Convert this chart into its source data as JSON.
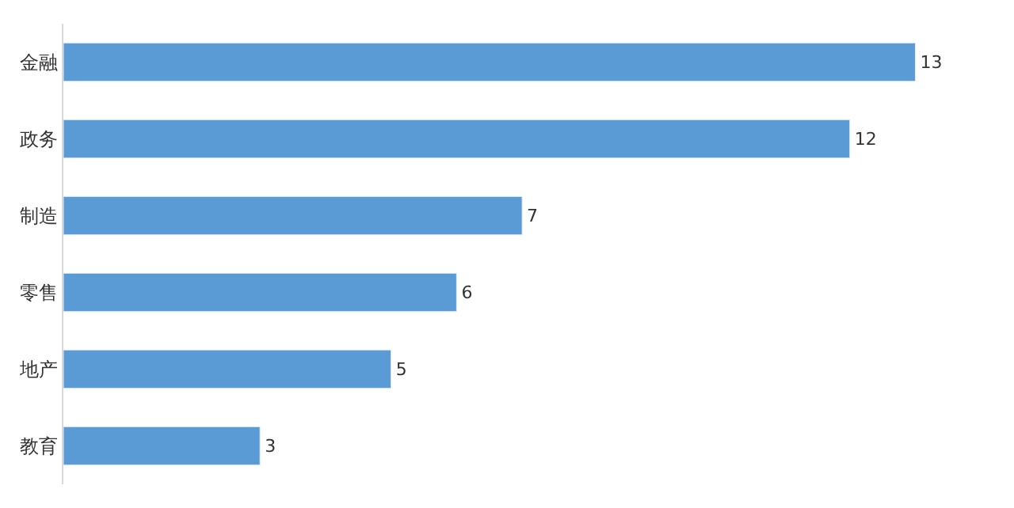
{
  "chart_data": {
    "type": "bar",
    "orientation": "horizontal",
    "categories": [
      "金融",
      "政务",
      "制造",
      "零售",
      "地产",
      "教育"
    ],
    "values": [
      13,
      12,
      7,
      6,
      5,
      3
    ],
    "color": "#5b9bd5",
    "data_labels": true,
    "legend": false
  }
}
